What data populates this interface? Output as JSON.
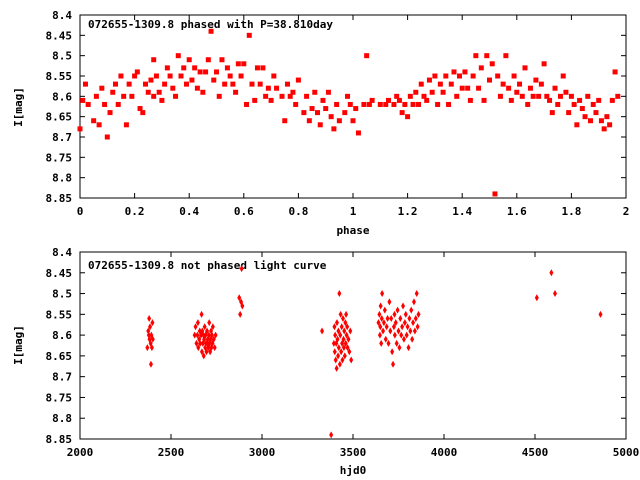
{
  "chart_data": [
    {
      "type": "scatter",
      "title": "072655-1309.8 phased with P=38.810day",
      "xlabel": "phase",
      "ylabel": "I[mag]",
      "xlim": [
        0,
        2
      ],
      "ylim": [
        8.4,
        8.85
      ],
      "y_inverted": true,
      "x_ticks": [
        "0",
        "0.2",
        "0.4",
        "0.6",
        "0.8",
        "1",
        "1.2",
        "1.4",
        "1.6",
        "1.8",
        "2"
      ],
      "y_ticks": [
        "8.4",
        "8.45",
        "8.5",
        "8.55",
        "8.6",
        "8.65",
        "8.7",
        "8.75",
        "8.8",
        "8.85"
      ],
      "marker": "filled-square",
      "color": "#ff0000",
      "grid": false,
      "points": [
        [
          0.0,
          8.68
        ],
        [
          0.01,
          8.61
        ],
        [
          0.02,
          8.57
        ],
        [
          0.03,
          8.62
        ],
        [
          0.05,
          8.66
        ],
        [
          0.06,
          8.6
        ],
        [
          0.07,
          8.67
        ],
        [
          0.08,
          8.58
        ],
        [
          0.09,
          8.62
        ],
        [
          0.1,
          8.7
        ],
        [
          0.11,
          8.64
        ],
        [
          0.12,
          8.59
        ],
        [
          0.13,
          8.57
        ],
        [
          0.14,
          8.62
        ],
        [
          0.15,
          8.55
        ],
        [
          0.16,
          8.6
        ],
        [
          0.17,
          8.67
        ],
        [
          0.18,
          8.57
        ],
        [
          0.19,
          8.6
        ],
        [
          0.2,
          8.55
        ],
        [
          0.21,
          8.54
        ],
        [
          0.22,
          8.63
        ],
        [
          0.23,
          8.64
        ],
        [
          0.24,
          8.57
        ],
        [
          0.25,
          8.59
        ],
        [
          0.26,
          8.56
        ],
        [
          0.27,
          8.6
        ],
        [
          0.27,
          8.51
        ],
        [
          0.28,
          8.55
        ],
        [
          0.29,
          8.59
        ],
        [
          0.3,
          8.61
        ],
        [
          0.31,
          8.57
        ],
        [
          0.32,
          8.53
        ],
        [
          0.33,
          8.55
        ],
        [
          0.34,
          8.58
        ],
        [
          0.35,
          8.6
        ],
        [
          0.36,
          8.5
        ],
        [
          0.37,
          8.55
        ],
        [
          0.38,
          8.53
        ],
        [
          0.39,
          8.57
        ],
        [
          0.4,
          8.51
        ],
        [
          0.41,
          8.56
        ],
        [
          0.42,
          8.53
        ],
        [
          0.43,
          8.58
        ],
        [
          0.44,
          8.54
        ],
        [
          0.45,
          8.59
        ],
        [
          0.46,
          8.54
        ],
        [
          0.47,
          8.51
        ],
        [
          0.48,
          8.44
        ],
        [
          0.49,
          8.56
        ],
        [
          0.5,
          8.54
        ],
        [
          0.51,
          8.6
        ],
        [
          0.52,
          8.51
        ],
        [
          0.53,
          8.57
        ],
        [
          0.54,
          8.53
        ],
        [
          0.55,
          8.55
        ],
        [
          0.56,
          8.57
        ],
        [
          0.57,
          8.59
        ],
        [
          0.58,
          8.52
        ],
        [
          0.59,
          8.55
        ],
        [
          0.6,
          8.52
        ],
        [
          0.61,
          8.62
        ],
        [
          0.62,
          8.45
        ],
        [
          0.63,
          8.57
        ],
        [
          0.64,
          8.61
        ],
        [
          0.65,
          8.53
        ],
        [
          0.66,
          8.57
        ],
        [
          0.67,
          8.53
        ],
        [
          0.68,
          8.6
        ],
        [
          0.69,
          8.58
        ],
        [
          0.7,
          8.61
        ],
        [
          0.71,
          8.55
        ],
        [
          0.72,
          8.58
        ],
        [
          0.74,
          8.6
        ],
        [
          0.75,
          8.66
        ],
        [
          0.76,
          8.57
        ],
        [
          0.77,
          8.6
        ],
        [
          0.78,
          8.59
        ],
        [
          0.79,
          8.62
        ],
        [
          0.8,
          8.56
        ],
        [
          0.82,
          8.64
        ],
        [
          0.83,
          8.6
        ],
        [
          0.84,
          8.66
        ],
        [
          0.85,
          8.63
        ],
        [
          0.86,
          8.59
        ],
        [
          0.87,
          8.64
        ],
        [
          0.88,
          8.67
        ],
        [
          0.89,
          8.61
        ],
        [
          0.9,
          8.63
        ],
        [
          0.91,
          8.59
        ],
        [
          0.92,
          8.65
        ],
        [
          0.93,
          8.68
        ],
        [
          0.94,
          8.62
        ],
        [
          0.95,
          8.66
        ],
        [
          0.97,
          8.64
        ],
        [
          0.98,
          8.6
        ],
        [
          0.99,
          8.62
        ],
        [
          1.0,
          8.66
        ],
        [
          1.01,
          8.63
        ],
        [
          1.02,
          8.69
        ],
        [
          1.04,
          8.62
        ],
        [
          1.05,
          8.5
        ],
        [
          1.06,
          8.62
        ],
        [
          1.07,
          8.61
        ],
        [
          1.1,
          8.62
        ],
        [
          1.12,
          8.62
        ],
        [
          1.13,
          8.61
        ],
        [
          1.15,
          8.62
        ],
        [
          1.16,
          8.6
        ],
        [
          1.17,
          8.61
        ],
        [
          1.18,
          8.64
        ],
        [
          1.19,
          8.62
        ],
        [
          1.2,
          8.65
        ],
        [
          1.21,
          8.6
        ],
        [
          1.22,
          8.62
        ],
        [
          1.23,
          8.59
        ],
        [
          1.24,
          8.62
        ],
        [
          1.25,
          8.57
        ],
        [
          1.26,
          8.6
        ],
        [
          1.27,
          8.61
        ],
        [
          1.28,
          8.56
        ],
        [
          1.29,
          8.59
        ],
        [
          1.3,
          8.55
        ],
        [
          1.31,
          8.62
        ],
        [
          1.32,
          8.57
        ],
        [
          1.33,
          8.59
        ],
        [
          1.34,
          8.55
        ],
        [
          1.35,
          8.62
        ],
        [
          1.36,
          8.57
        ],
        [
          1.37,
          8.54
        ],
        [
          1.38,
          8.6
        ],
        [
          1.39,
          8.55
        ],
        [
          1.4,
          8.58
        ],
        [
          1.41,
          8.54
        ],
        [
          1.42,
          8.58
        ],
        [
          1.43,
          8.61
        ],
        [
          1.44,
          8.55
        ],
        [
          1.45,
          8.5
        ],
        [
          1.46,
          8.58
        ],
        [
          1.47,
          8.53
        ],
        [
          1.48,
          8.61
        ],
        [
          1.49,
          8.5
        ],
        [
          1.5,
          8.56
        ],
        [
          1.51,
          8.52
        ],
        [
          1.52,
          8.84
        ],
        [
          1.53,
          8.55
        ],
        [
          1.54,
          8.6
        ],
        [
          1.55,
          8.57
        ],
        [
          1.56,
          8.5
        ],
        [
          1.57,
          8.58
        ],
        [
          1.58,
          8.61
        ],
        [
          1.59,
          8.55
        ],
        [
          1.6,
          8.59
        ],
        [
          1.61,
          8.57
        ],
        [
          1.62,
          8.6
        ],
        [
          1.63,
          8.53
        ],
        [
          1.64,
          8.62
        ],
        [
          1.65,
          8.58
        ],
        [
          1.66,
          8.6
        ],
        [
          1.67,
          8.56
        ],
        [
          1.68,
          8.6
        ],
        [
          1.69,
          8.57
        ],
        [
          1.7,
          8.52
        ],
        [
          1.71,
          8.6
        ],
        [
          1.72,
          8.61
        ],
        [
          1.73,
          8.64
        ],
        [
          1.74,
          8.58
        ],
        [
          1.75,
          8.62
        ],
        [
          1.76,
          8.6
        ],
        [
          1.77,
          8.55
        ],
        [
          1.78,
          8.59
        ],
        [
          1.79,
          8.64
        ],
        [
          1.8,
          8.6
        ],
        [
          1.81,
          8.62
        ],
        [
          1.82,
          8.67
        ],
        [
          1.83,
          8.61
        ],
        [
          1.84,
          8.63
        ],
        [
          1.85,
          8.65
        ],
        [
          1.86,
          8.6
        ],
        [
          1.87,
          8.66
        ],
        [
          1.88,
          8.62
        ],
        [
          1.89,
          8.64
        ],
        [
          1.9,
          8.61
        ],
        [
          1.91,
          8.66
        ],
        [
          1.92,
          8.68
        ],
        [
          1.93,
          8.65
        ],
        [
          1.94,
          8.67
        ],
        [
          1.95,
          8.61
        ],
        [
          1.96,
          8.54
        ],
        [
          1.97,
          8.6
        ]
      ]
    },
    {
      "type": "scatter",
      "title": "072655-1309.8 not phased light curve",
      "xlabel": "hjd0",
      "ylabel": "I[mag]",
      "xlim": [
        2000,
        5000
      ],
      "ylim": [
        8.4,
        8.85
      ],
      "y_inverted": true,
      "x_ticks": [
        "2000",
        "2500",
        "3000",
        "3500",
        "4000",
        "4500",
        "5000"
      ],
      "y_ticks": [
        "8.4",
        "8.45",
        "8.5",
        "8.55",
        "8.6",
        "8.65",
        "8.7",
        "8.75",
        "8.8",
        "8.85"
      ],
      "marker": "filled-diamond",
      "color": "#ff0000",
      "grid": false,
      "points": [
        [
          2370,
          8.63
        ],
        [
          2375,
          8.59
        ],
        [
          2378,
          8.6
        ],
        [
          2380,
          8.56
        ],
        [
          2382,
          8.61
        ],
        [
          2385,
          8.58
        ],
        [
          2388,
          8.62
        ],
        [
          2390,
          8.67
        ],
        [
          2392,
          8.6
        ],
        [
          2395,
          8.63
        ],
        [
          2398,
          8.57
        ],
        [
          2400,
          8.61
        ],
        [
          2630,
          8.6
        ],
        [
          2635,
          8.58
        ],
        [
          2640,
          8.62
        ],
        [
          2645,
          8.6
        ],
        [
          2648,
          8.57
        ],
        [
          2650,
          8.63
        ],
        [
          2655,
          8.61
        ],
        [
          2658,
          8.59
        ],
        [
          2660,
          8.62
        ],
        [
          2665,
          8.6
        ],
        [
          2668,
          8.55
        ],
        [
          2670,
          8.64
        ],
        [
          2672,
          8.59
        ],
        [
          2675,
          8.62
        ],
        [
          2678,
          8.6
        ],
        [
          2680,
          8.65
        ],
        [
          2682,
          8.61
        ],
        [
          2685,
          8.58
        ],
        [
          2688,
          8.63
        ],
        [
          2690,
          8.6
        ],
        [
          2692,
          8.62
        ],
        [
          2695,
          8.64
        ],
        [
          2698,
          8.59
        ],
        [
          2700,
          8.62
        ],
        [
          2702,
          8.61
        ],
        [
          2705,
          8.63
        ],
        [
          2708,
          8.6
        ],
        [
          2710,
          8.57
        ],
        [
          2712,
          8.62
        ],
        [
          2715,
          8.64
        ],
        [
          2718,
          8.61
        ],
        [
          2720,
          8.59
        ],
        [
          2722,
          8.63
        ],
        [
          2725,
          8.6
        ],
        [
          2728,
          8.62
        ],
        [
          2730,
          8.58
        ],
        [
          2735,
          8.61
        ],
        [
          2740,
          8.63
        ],
        [
          2745,
          8.6
        ],
        [
          2875,
          8.51
        ],
        [
          2880,
          8.55
        ],
        [
          2885,
          8.52
        ],
        [
          2888,
          8.44
        ],
        [
          2892,
          8.53
        ],
        [
          3330,
          8.59
        ],
        [
          3380,
          8.84
        ],
        [
          3395,
          8.62
        ],
        [
          3398,
          8.58
        ],
        [
          3400,
          8.64
        ],
        [
          3402,
          8.6
        ],
        [
          3405,
          8.66
        ],
        [
          3408,
          8.62
        ],
        [
          3410,
          8.68
        ],
        [
          3412,
          8.57
        ],
        [
          3415,
          8.61
        ],
        [
          3418,
          8.65
        ],
        [
          3420,
          8.59
        ],
        [
          3422,
          8.63
        ],
        [
          3425,
          8.5
        ],
        [
          3428,
          8.67
        ],
        [
          3430,
          8.6
        ],
        [
          3432,
          8.55
        ],
        [
          3435,
          8.64
        ],
        [
          3438,
          8.58
        ],
        [
          3440,
          8.62
        ],
        [
          3442,
          8.66
        ],
        [
          3445,
          8.56
        ],
        [
          3448,
          8.61
        ],
        [
          3450,
          8.63
        ],
        [
          3452,
          8.59
        ],
        [
          3455,
          8.65
        ],
        [
          3458,
          8.57
        ],
        [
          3460,
          8.62
        ],
        [
          3462,
          8.55
        ],
        [
          3465,
          8.6
        ],
        [
          3468,
          8.58
        ],
        [
          3470,
          8.63
        ],
        [
          3475,
          8.61
        ],
        [
          3480,
          8.64
        ],
        [
          3485,
          8.59
        ],
        [
          3490,
          8.66
        ],
        [
          3640,
          8.57
        ],
        [
          3645,
          8.55
        ],
        [
          3648,
          8.6
        ],
        [
          3650,
          8.58
        ],
        [
          3652,
          8.53
        ],
        [
          3655,
          8.62
        ],
        [
          3658,
          8.56
        ],
        [
          3660,
          8.5
        ],
        [
          3665,
          8.59
        ],
        [
          3670,
          8.57
        ],
        [
          3675,
          8.54
        ],
        [
          3680,
          8.61
        ],
        [
          3685,
          8.58
        ],
        [
          3690,
          8.56
        ],
        [
          3695,
          8.62
        ],
        [
          3700,
          8.52
        ],
        [
          3705,
          8.59
        ],
        [
          3710,
          8.56
        ],
        [
          3715,
          8.64
        ],
        [
          3720,
          8.67
        ],
        [
          3725,
          8.58
        ],
        [
          3728,
          8.55
        ],
        [
          3730,
          8.6
        ],
        [
          3735,
          8.57
        ],
        [
          3740,
          8.62
        ],
        [
          3745,
          8.54
        ],
        [
          3750,
          8.59
        ],
        [
          3755,
          8.63
        ],
        [
          3760,
          8.56
        ],
        [
          3765,
          8.6
        ],
        [
          3770,
          8.58
        ],
        [
          3775,
          8.53
        ],
        [
          3780,
          8.61
        ],
        [
          3785,
          8.57
        ],
        [
          3790,
          8.55
        ],
        [
          3795,
          8.6
        ],
        [
          3800,
          8.58
        ],
        [
          3805,
          8.63
        ],
        [
          3810,
          8.56
        ],
        [
          3815,
          8.59
        ],
        [
          3820,
          8.54
        ],
        [
          3825,
          8.61
        ],
        [
          3830,
          8.57
        ],
        [
          3835,
          8.52
        ],
        [
          3840,
          8.59
        ],
        [
          3845,
          8.56
        ],
        [
          3850,
          8.5
        ],
        [
          3855,
          8.58
        ],
        [
          3860,
          8.55
        ],
        [
          4510,
          8.51
        ],
        [
          4590,
          8.45
        ],
        [
          4610,
          8.5
        ],
        [
          4860,
          8.55
        ]
      ]
    }
  ]
}
